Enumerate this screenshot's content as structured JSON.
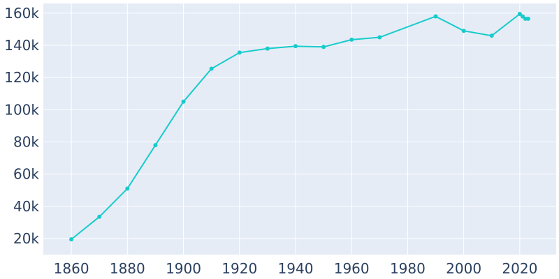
{
  "chart_data": {
    "type": "line",
    "title": "",
    "xlabel": "",
    "ylabel": "",
    "xlim": [
      1850,
      2033
    ],
    "ylim": [
      10000,
      166000
    ],
    "grid": true,
    "legend": "none",
    "x_ticks": [
      1860,
      1880,
      1900,
      1920,
      1940,
      1960,
      1980,
      2000,
      2020
    ],
    "x_tick_labels": [
      "1860",
      "1880",
      "1900",
      "1920",
      "1940",
      "1960",
      "1980",
      "2000",
      "2020"
    ],
    "y_ticks": [
      20000,
      40000,
      60000,
      80000,
      100000,
      120000,
      140000,
      160000
    ],
    "y_tick_labels": [
      "20k",
      "40k",
      "60k",
      "80k",
      "100k",
      "120k",
      "140k",
      "160k"
    ],
    "colors": {
      "line": "#17cbcb",
      "plot_bg": "#e5ecf6",
      "grid": "#ffffff",
      "tick_text": "#2a3f5f"
    },
    "series": [
      {
        "x": [
          1860,
          1870,
          1880,
          1890,
          1900,
          1910,
          1920,
          1930,
          1940,
          1950,
          1960,
          1970,
          1990,
          2000,
          2010,
          2020,
          2021,
          2022,
          2023
        ],
        "values": [
          19500,
          33500,
          51000,
          78000,
          105000,
          125500,
          135500,
          138000,
          139500,
          139000,
          143500,
          145000,
          158000,
          149000,
          146000,
          159500,
          158000,
          156500,
          156500
        ]
      }
    ]
  }
}
